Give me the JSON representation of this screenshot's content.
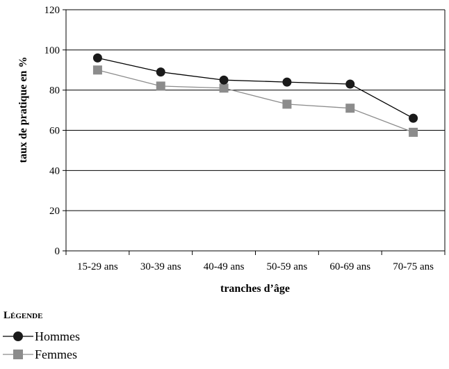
{
  "chart_data": {
    "type": "line",
    "title": "",
    "xlabel": "tranches d’âge",
    "ylabel": "taux de pratique en %",
    "categories": [
      "15-29 ans",
      "30-39 ans",
      "40-49 ans",
      "50-59 ans",
      "60-69 ans",
      "70-75 ans"
    ],
    "ylim": [
      0,
      120
    ],
    "yticks": [
      0,
      20,
      40,
      60,
      80,
      100,
      120
    ],
    "grid": true,
    "legend_title": "Légende",
    "legend_position": "bottom-left",
    "series": [
      {
        "name": "Hommes",
        "values": [
          96,
          89,
          85,
          84,
          83,
          66
        ],
        "color": "#1a1a1a",
        "line_color": "#000000",
        "marker": "circle"
      },
      {
        "name": "Femmes",
        "values": [
          90,
          82,
          81,
          73,
          71,
          59
        ],
        "color": "#8c8c8c",
        "line_color": "#8c8c8c",
        "marker": "square"
      }
    ]
  }
}
